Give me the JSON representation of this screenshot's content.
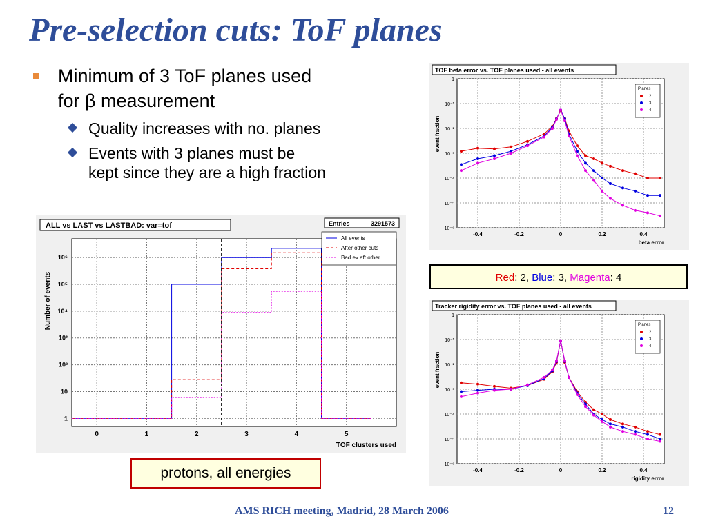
{
  "slide": {
    "title": "Pre-selection cuts: ToF planes",
    "bullet1_line1": "Minimum of 3 ToF planes used",
    "bullet1_line2": "for β measurement",
    "sub1": "Quality increases with no. planes",
    "sub2_line1": "Events with 3 planes must be",
    "sub2_line2": "kept since they are a high fraction",
    "legend": {
      "red_label": "Red",
      "red_value": ": 2, ",
      "blue_label": "Blue",
      "blue_value": ": 3, ",
      "magenta_label": "Magenta",
      "magenta_value": ": 4"
    },
    "protons_box": "protons, all energies",
    "footer": "AMS RICH meeting, Madrid, 28 March 2006",
    "page_number": "12",
    "colors": {
      "title": "#2e4d99",
      "bullet": "#e98a3a",
      "red": "#e00000",
      "blue": "#0000e0",
      "magenta": "#e000e0"
    }
  },
  "chart_data": [
    {
      "type": "line",
      "title": "TOF beta error vs. TOF planes used - all events",
      "xlabel": "beta error",
      "ylabel": "event fraction",
      "xlim": [
        -0.5,
        0.5
      ],
      "ylim": [
        1e-06,
        1
      ],
      "yscale": "log",
      "x_ticks": [
        "-0.4",
        "-0.2",
        "0",
        "0.2",
        "0.4"
      ],
      "y_ticks": [
        "10⁻⁶",
        "10⁻⁵",
        "10⁻⁴",
        "10⁻³",
        "10⁻²",
        "10⁻¹",
        "1"
      ],
      "grid": true,
      "legend_title": "Planes",
      "legend_position": "top-right",
      "series": [
        {
          "name": "2",
          "color": "#e00000",
          "x": [
            -0.48,
            -0.4,
            -0.32,
            -0.24,
            -0.16,
            -0.08,
            -0.04,
            -0.02,
            0,
            0.02,
            0.04,
            0.08,
            0.12,
            0.16,
            0.2,
            0.24,
            0.3,
            0.36,
            0.42,
            0.48
          ],
          "y": [
            0.0012,
            0.0016,
            0.0015,
            0.0018,
            0.003,
            0.006,
            0.012,
            0.025,
            0.05,
            0.025,
            0.008,
            0.002,
            0.0008,
            0.0006,
            0.0004,
            0.0003,
            0.0002,
            0.00015,
            0.0001,
            0.0001
          ]
        },
        {
          "name": "3",
          "color": "#0000e0",
          "x": [
            -0.48,
            -0.4,
            -0.32,
            -0.24,
            -0.16,
            -0.08,
            -0.04,
            -0.02,
            0,
            0.02,
            0.04,
            0.08,
            0.12,
            0.16,
            0.2,
            0.24,
            0.3,
            0.36,
            0.42,
            0.48
          ],
          "y": [
            0.00035,
            0.0006,
            0.0008,
            0.0012,
            0.0022,
            0.005,
            0.011,
            0.024,
            0.055,
            0.024,
            0.006,
            0.0012,
            0.0004,
            0.0002,
            0.0001,
            6e-05,
            4e-05,
            3e-05,
            2e-05,
            2e-05
          ]
        },
        {
          "name": "4",
          "color": "#e000e0",
          "x": [
            -0.48,
            -0.4,
            -0.32,
            -0.24,
            -0.16,
            -0.08,
            -0.04,
            -0.02,
            0,
            0.02,
            0.04,
            0.08,
            0.12,
            0.16,
            0.2,
            0.24,
            0.3,
            0.36,
            0.42,
            0.48
          ],
          "y": [
            0.0002,
            0.0004,
            0.0006,
            0.001,
            0.002,
            0.0045,
            0.01,
            0.023,
            0.055,
            0.02,
            0.005,
            0.0008,
            0.0002,
            8e-05,
            3e-05,
            1.5e-05,
            8e-06,
            5e-06,
            4e-06,
            3e-06
          ]
        }
      ]
    },
    {
      "type": "line",
      "title": "Tracker rigidity error vs. TOF planes used - all events",
      "xlabel": "rigidity error",
      "ylabel": "event fraction",
      "xlim": [
        -0.5,
        0.5
      ],
      "ylim": [
        1e-06,
        1
      ],
      "yscale": "log",
      "x_ticks": [
        "-0.4",
        "-0.2",
        "0",
        "0.2",
        "0.4"
      ],
      "y_ticks": [
        "10⁻⁶",
        "10⁻⁵",
        "10⁻⁴",
        "10⁻³",
        "10⁻²",
        "10⁻¹",
        "1"
      ],
      "grid": true,
      "legend_title": "Planes",
      "legend_position": "top-right",
      "series": [
        {
          "name": "2",
          "color": "#e00000",
          "x": [
            -0.48,
            -0.4,
            -0.32,
            -0.24,
            -0.16,
            -0.08,
            -0.04,
            -0.02,
            0,
            0.02,
            0.04,
            0.08,
            0.12,
            0.16,
            0.2,
            0.24,
            0.3,
            0.36,
            0.42,
            0.48
          ],
          "y": [
            0.0018,
            0.0016,
            0.0013,
            0.0011,
            0.0014,
            0.0025,
            0.005,
            0.012,
            0.09,
            0.012,
            0.003,
            0.0008,
            0.0003,
            0.00015,
            0.0001,
            6e-05,
            4e-05,
            3e-05,
            2e-05,
            1.5e-05
          ]
        },
        {
          "name": "3",
          "color": "#0000e0",
          "x": [
            -0.48,
            -0.4,
            -0.32,
            -0.24,
            -0.16,
            -0.08,
            -0.04,
            -0.02,
            0,
            0.02,
            0.04,
            0.08,
            0.12,
            0.16,
            0.2,
            0.24,
            0.3,
            0.36,
            0.42,
            0.48
          ],
          "y": [
            0.0008,
            0.0009,
            0.001,
            0.001,
            0.0014,
            0.0027,
            0.0055,
            0.013,
            0.09,
            0.013,
            0.003,
            0.0007,
            0.00025,
            0.0001,
            6e-05,
            4e-05,
            3e-05,
            2e-05,
            1.5e-05,
            1e-05
          ]
        },
        {
          "name": "4",
          "color": "#e000e0",
          "x": [
            -0.48,
            -0.4,
            -0.32,
            -0.24,
            -0.16,
            -0.08,
            -0.04,
            -0.02,
            0,
            0.02,
            0.04,
            0.08,
            0.12,
            0.16,
            0.2,
            0.24,
            0.3,
            0.36,
            0.42,
            0.48
          ],
          "y": [
            0.0005,
            0.0007,
            0.0009,
            0.001,
            0.0015,
            0.003,
            0.006,
            0.014,
            0.09,
            0.014,
            0.003,
            0.0006,
            0.0002,
            9e-05,
            5e-05,
            3e-05,
            2e-05,
            1.5e-05,
            1e-05,
            8e-06
          ]
        }
      ]
    },
    {
      "type": "bar",
      "title": "ALL vs LAST vs LASTBAD: var=tof",
      "xlabel": "TOF clusters used",
      "ylabel": "Number of events",
      "yscale": "log",
      "ylim": [
        0.5,
        5000000
      ],
      "categories": [
        "0",
        "1",
        "2",
        "3",
        "4",
        "5"
      ],
      "x_ticks": [
        "0",
        "1",
        "2",
        "3",
        "4",
        "5"
      ],
      "y_ticks": [
        "1",
        "10",
        "10²",
        "10³",
        "10⁴",
        "10⁵",
        "10⁶"
      ],
      "stats": {
        "label": "Entries",
        "value": "3291573"
      },
      "cut_line_x": 2.5,
      "legend_position": "top-right",
      "series": [
        {
          "name": "All events",
          "color": "#0000e0",
          "values": [
            1,
            1,
            100000,
            1000000,
            2200000,
            1
          ]
        },
        {
          "name": "After other cuts",
          "color": "#e00000",
          "values": [
            1,
            1,
            28,
            380000,
            1500000,
            1
          ]
        },
        {
          "name": "Bad ev aft other",
          "color": "#e000e0",
          "values": [
            1,
            1,
            6,
            9000,
            55000,
            1
          ]
        }
      ]
    }
  ]
}
